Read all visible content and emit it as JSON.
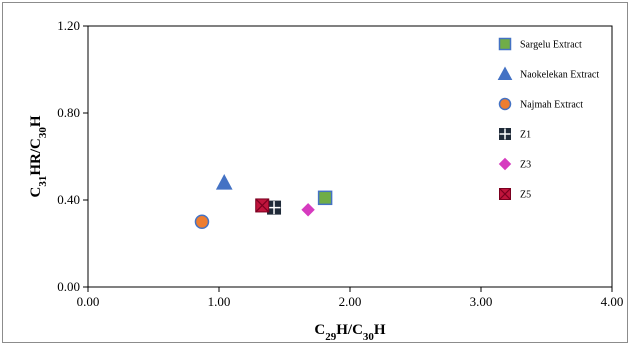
{
  "chart_data": {
    "type": "scatter",
    "xlabel": {
      "main": "C",
      "sub1": "29",
      "mid": "H/C",
      "sub2": "30",
      "end": "H"
    },
    "ylabel": {
      "main": "C",
      "sub1": "31",
      "mid": "HR/C",
      "sub2": "30",
      "end": "H"
    },
    "xlim": [
      0,
      4
    ],
    "ylim": [
      0,
      1.2
    ],
    "xticks": [
      0,
      1,
      2,
      3,
      4
    ],
    "yticks": [
      0,
      0.4,
      0.8,
      1.2
    ],
    "xtick_labels": [
      "0.00",
      "1.00",
      "2.00",
      "3.00",
      "4.00"
    ],
    "ytick_labels": [
      "0.00",
      "0.40",
      "0.80",
      "1.20"
    ],
    "grid": false,
    "legend_position": "right",
    "series": [
      {
        "name": "Sargelu Extract",
        "marker": "square",
        "color": "#70ad47",
        "stroke": "#4472c4",
        "x": 1.81,
        "y": 0.41
      },
      {
        "name": "Naokelekan Extract",
        "marker": "triangle",
        "color": "#4472c4",
        "stroke": "#4472c4",
        "x": 1.04,
        "y": 0.48
      },
      {
        "name": "Najmah Extract",
        "marker": "circle",
        "color": "#ed7d31",
        "stroke": "#4472c4",
        "x": 0.87,
        "y": 0.3
      },
      {
        "name": "Z1",
        "marker": "square-cross",
        "color": "#1f2a38",
        "stroke": "#1f2a38",
        "x": 1.42,
        "y": 0.365
      },
      {
        "name": "Z3",
        "marker": "diamond",
        "color": "#d63bbf",
        "stroke": "#d63bbf",
        "x": 1.68,
        "y": 0.355
      },
      {
        "name": "Z5",
        "marker": "square-x",
        "color": "#c0143c",
        "stroke": "#7a0020",
        "x": 1.33,
        "y": 0.375
      }
    ]
  }
}
